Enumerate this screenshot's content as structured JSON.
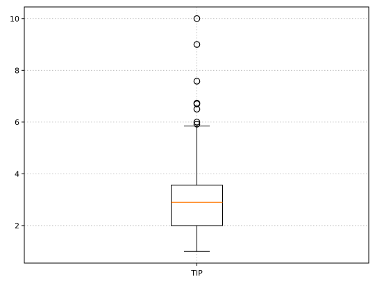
{
  "chart_data": {
    "type": "box",
    "title": "",
    "xlabel": "",
    "ylabel": "",
    "categories": [
      "TIP"
    ],
    "ylim": [
      0.55,
      10.45
    ],
    "yticks": [
      2,
      4,
      6,
      8,
      10
    ],
    "grid": true,
    "legend": "none",
    "boxes": [
      {
        "label": "TIP",
        "whisker_low": 1.0,
        "q1": 2.0,
        "median": 2.9,
        "q3": 3.56,
        "whisker_high": 5.85,
        "outliers": [
          5.92,
          6.0,
          6.5,
          6.7,
          6.73,
          7.58,
          9.0,
          10.0
        ]
      }
    ],
    "colors": {
      "box": "#000000",
      "median": "#ff7f0e",
      "grid": "#b0b0b0"
    }
  }
}
